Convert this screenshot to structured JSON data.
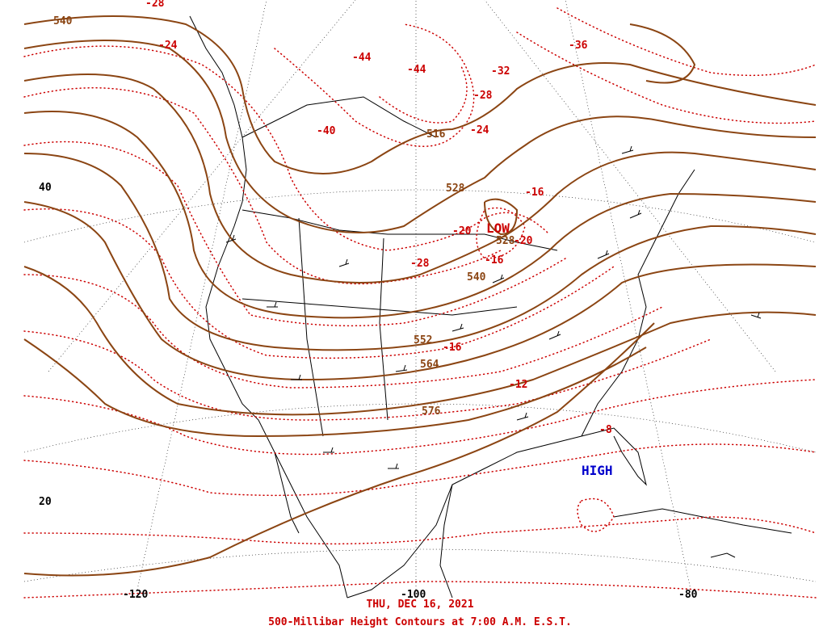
{
  "colors": {
    "height_contour": "#8b4513",
    "temperature_contour": "#cc0000",
    "coast": "#000000",
    "high_label": "#0000cc",
    "low_label": "#cc0000",
    "caption": "#cc0000"
  },
  "height_labels": [
    "540",
    "516",
    "528",
    "540",
    "552",
    "564",
    "576",
    "528"
  ],
  "temperature_labels": [
    "-28",
    "-24",
    "-44",
    "-44",
    "-36",
    "-32",
    "-28",
    "-40",
    "-24",
    "-16",
    "-20",
    "-28",
    "-16",
    "-16",
    "-20",
    "-12",
    "-8"
  ],
  "pressure_centers": {
    "low": "LOW",
    "high": "HIGH"
  },
  "latitude_labels": [
    "40",
    "20"
  ],
  "longitude_labels": [
    "-120",
    "-100",
    "-80"
  ],
  "caption": {
    "date": "THU, DEC 16, 2021",
    "title": "500-Millibar Height Contours at 7:00 A.M. E.S.T."
  }
}
